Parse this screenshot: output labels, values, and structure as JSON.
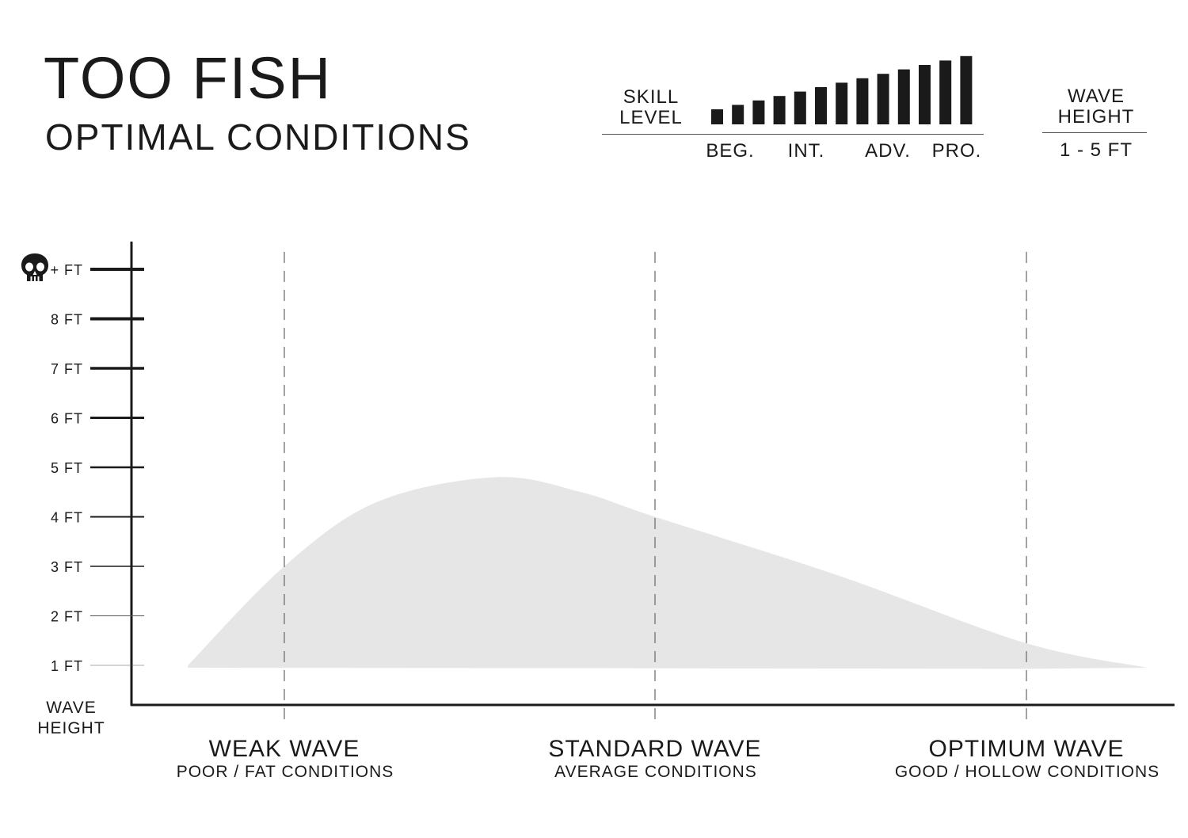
{
  "header": {
    "title": "TOO FISH",
    "subtitle": "OPTIMAL CONDITIONS"
  },
  "skill": {
    "label_line1": "SKILL",
    "label_line2": "LEVEL",
    "levels": [
      "BEG.",
      "INT.",
      "ADV.",
      "PRO."
    ],
    "bar_count": 13,
    "bar_color": "#1a1a1a"
  },
  "wave_height_box": {
    "label_line1": "WAVE",
    "label_line2": "HEIGHT",
    "value": "1 - 5 FT"
  },
  "chart_data": {
    "type": "area",
    "y_axis": {
      "title_line1": "WAVE",
      "title_line2": "HEIGHT",
      "ticks": [
        {
          "value": 1,
          "label": "1 FT"
        },
        {
          "value": 2,
          "label": "2 FT"
        },
        {
          "value": 3,
          "label": "3 FT"
        },
        {
          "value": 4,
          "label": "4 FT"
        },
        {
          "value": 5,
          "label": "5 FT"
        },
        {
          "value": 6,
          "label": "6 FT"
        },
        {
          "value": 7,
          "label": "7 FT"
        },
        {
          "value": 8,
          "label": "8 FT"
        },
        {
          "value": 9,
          "label": "+ FT",
          "icon": "skull-icon"
        }
      ],
      "ylim": [
        1,
        9
      ]
    },
    "x_axis": {
      "categories": [
        {
          "title": "WEAK WAVE",
          "subtitle": "POOR / FAT CONDITIONS"
        },
        {
          "title": "STANDARD WAVE",
          "subtitle": "AVERAGE CONDITIONS"
        },
        {
          "title": "OPTIMUM WAVE",
          "subtitle": "GOOD / HOLLOW CONDITIONS"
        }
      ]
    },
    "series": [
      {
        "fill": "#e6e6e6",
        "points": [
          {
            "x": -0.26,
            "y": 1.0
          },
          {
            "x": 0.0,
            "y": 3.0
          },
          {
            "x": 0.25,
            "y": 4.3
          },
          {
            "x": 0.57,
            "y": 4.8
          },
          {
            "x": 0.8,
            "y": 4.5
          },
          {
            "x": 1.0,
            "y": 4.0
          },
          {
            "x": 1.5,
            "y": 2.8
          },
          {
            "x": 2.0,
            "y": 1.45
          },
          {
            "x": 2.33,
            "y": 0.95
          }
        ]
      }
    ],
    "grid": "dashed vertical lines at categories",
    "legend": "none"
  }
}
